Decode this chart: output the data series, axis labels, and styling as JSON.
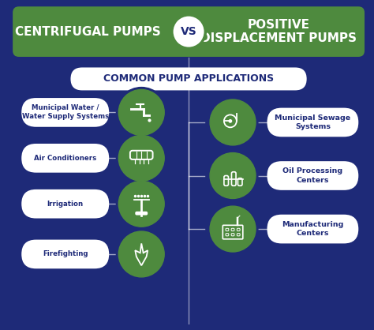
{
  "bg_color": "#1e2a78",
  "header_green": "#4e8a3e",
  "header_text_color": "#ffffff",
  "circle_green": "#4e8a3e",
  "circle_border": "#2a3a8c",
  "pill_bg": "#ffffff",
  "pill_text_color": "#1e2a78",
  "vs_circle_bg": "#ffffff",
  "vs_text_color": "#1e2a78",
  "divider_color": "#ffffff",
  "subtitle_bg": "#ffffff",
  "subtitle_text": "COMMON PUMP APPLICATIONS",
  "left_title": "CENTRIFUGAL PUMPS",
  "right_title": "POSITIVE\nDISPLACEMENT PUMPS",
  "left_items": [
    "Municipal Water /\nWater Supply Systems",
    "Air Conditioners",
    "Irrigation",
    "Firefighting"
  ],
  "right_items": [
    "Municipal Sewage\nSystems",
    "Oil Processing\nCenters",
    "Manufacturing\nCenters"
  ],
  "figsize": [
    4.74,
    4.18
  ],
  "dpi": 100
}
